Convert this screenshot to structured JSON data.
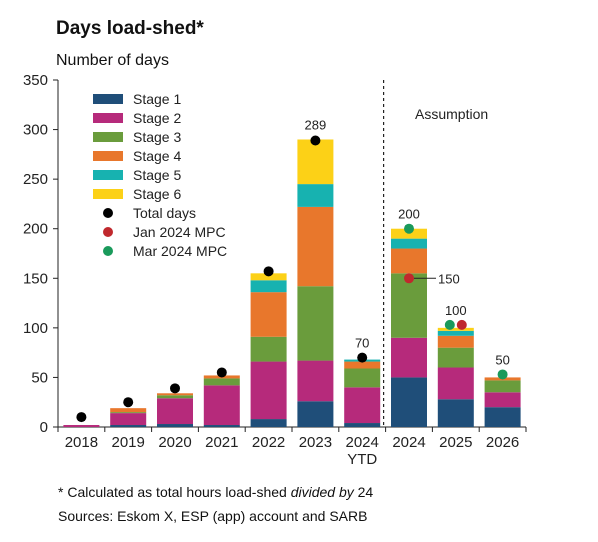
{
  "chart_data": {
    "type": "bar",
    "title": "Days load-shed*",
    "ylabel": "Number of days",
    "xlabel": "",
    "ylim": [
      0,
      350
    ],
    "yticks": [
      0,
      50,
      100,
      150,
      200,
      250,
      300,
      350
    ],
    "grid": false,
    "legend_position": "top-left",
    "stacked": true,
    "categories": [
      {
        "label": "2018",
        "sublabel": ""
      },
      {
        "label": "2019",
        "sublabel": ""
      },
      {
        "label": "2020",
        "sublabel": ""
      },
      {
        "label": "2021",
        "sublabel": ""
      },
      {
        "label": "2022",
        "sublabel": ""
      },
      {
        "label": "2023",
        "sublabel": ""
      },
      {
        "label": "2024",
        "sublabel": "YTD"
      },
      {
        "label": "2024",
        "sublabel": ""
      },
      {
        "label": "2025",
        "sublabel": ""
      },
      {
        "label": "2026",
        "sublabel": ""
      }
    ],
    "series": [
      {
        "name": "Stage 1",
        "color": "#1f4e79",
        "values": [
          0,
          2,
          3,
          2,
          8,
          26,
          4,
          50,
          28,
          20
        ]
      },
      {
        "name": "Stage 2",
        "color": "#b62a7b",
        "values": [
          2,
          12,
          26,
          40,
          58,
          41,
          36,
          40,
          32,
          15
        ]
      },
      {
        "name": "Stage 3",
        "color": "#6a9c3c",
        "values": [
          0,
          1,
          3,
          7,
          25,
          75,
          19,
          65,
          20,
          12
        ]
      },
      {
        "name": "Stage 4",
        "color": "#e8772c",
        "values": [
          0,
          4,
          2,
          3,
          45,
          80,
          7,
          25,
          12,
          3
        ]
      },
      {
        "name": "Stage 5",
        "color": "#17b2b0",
        "values": [
          0,
          0,
          0,
          0,
          12,
          23,
          2,
          10,
          5,
          0
        ]
      },
      {
        "name": "Stage 6",
        "color": "#fcd117",
        "values": [
          0,
          0,
          0,
          0,
          7,
          45,
          0,
          10,
          3,
          0
        ]
      }
    ],
    "markers": [
      {
        "name": "Total days",
        "color": "#000000",
        "values": [
          10,
          25,
          39,
          55,
          157,
          289,
          70,
          null,
          null,
          null
        ]
      },
      {
        "name": "Jan 2024 MPC",
        "color": "#c0282d",
        "values": [
          null,
          null,
          null,
          null,
          null,
          null,
          null,
          150,
          103,
          null
        ]
      },
      {
        "name": "Mar 2024 MPC",
        "color": "#1a9a5b",
        "values": [
          null,
          null,
          null,
          null,
          null,
          null,
          null,
          200,
          103,
          53
        ]
      }
    ],
    "total_labels": [
      {
        "index": 5,
        "text": "289"
      },
      {
        "index": 6,
        "text": "70"
      },
      {
        "index": 7,
        "text": "200"
      },
      {
        "index": 7,
        "text": "150"
      },
      {
        "index": 8,
        "text": "100"
      },
      {
        "index": 9,
        "text": "50"
      }
    ],
    "annotations": [
      {
        "text": "Assumption",
        "region_start_index": 7
      }
    ]
  },
  "footnote": {
    "before": "* Calculated as total hours load-shed ",
    "emph": "divided by",
    "after": " 24"
  },
  "sources": "Sources: Eskom X, ESP (app) account and SARB"
}
